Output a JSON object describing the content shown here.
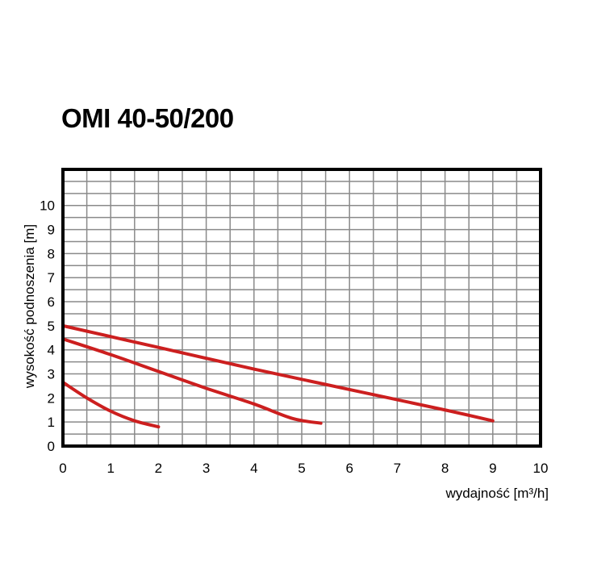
{
  "chart_data": {
    "type": "line",
    "title": "OMI 40-50/200",
    "xlabel": "wydajność [m³/h]",
    "ylabel": "wysokość podnoszenia [m]",
    "xlim": [
      0,
      10
    ],
    "ylim": [
      0,
      11.5
    ],
    "x_ticks": [
      "0",
      "1",
      "2",
      "3",
      "4",
      "5",
      "6",
      "7",
      "8",
      "9",
      "10"
    ],
    "y_ticks": [
      "0",
      "1",
      "2",
      "3",
      "4",
      "5",
      "6",
      "7",
      "8",
      "9",
      "10"
    ],
    "grid": true,
    "grid_step": 0.5,
    "line_color": "#cc1f1f",
    "series": [
      {
        "points": [
          [
            0,
            2.65
          ],
          [
            0.5,
            2.0
          ],
          [
            1.0,
            1.45
          ],
          [
            1.5,
            1.05
          ],
          [
            2.0,
            0.8
          ]
        ]
      },
      {
        "points": [
          [
            0,
            4.45
          ],
          [
            1.0,
            3.8
          ],
          [
            2.0,
            3.1
          ],
          [
            3.0,
            2.4
          ],
          [
            4.0,
            1.75
          ],
          [
            4.8,
            1.15
          ],
          [
            5.4,
            0.95
          ]
        ]
      },
      {
        "points": [
          [
            0,
            5.0
          ],
          [
            2.0,
            4.1
          ],
          [
            4.0,
            3.2
          ],
          [
            6.0,
            2.35
          ],
          [
            8.0,
            1.5
          ],
          [
            9.0,
            1.05
          ]
        ]
      }
    ]
  }
}
